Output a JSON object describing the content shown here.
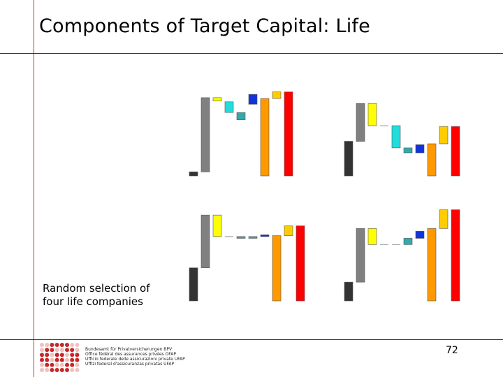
{
  "slide": {
    "title": "Components of Target Capital: Life",
    "caption_line1": "Random selection of",
    "caption_line2": "four life companies",
    "page_number": "72"
  },
  "logo": {
    "lines": [
      "Bundesamt für Privatversicherungen BPV",
      "Office fédéral des assurances privées OFAP",
      "Ufficio federale delle assicurazioni private UFAP",
      "Uffizi federal d'assicuranzas privatas UFAP"
    ],
    "color": "#c62828"
  },
  "colors": {
    "c1": "#333333",
    "c2": "#808080",
    "c3": "#ffff00",
    "c4": "#c0c0c0",
    "c5": "#22dddd",
    "c6": "#33aaaa",
    "c7": "#1133dd",
    "c8": "#ff9900",
    "c9": "#ffcc00",
    "c10": "#ff0000"
  },
  "chart_data": [
    {
      "type": "bar",
      "subtype": "waterfall",
      "title": "",
      "axes_visible": false,
      "grid": false,
      "ylim": [
        0,
        100
      ],
      "steps": [
        {
          "color": "c1",
          "start": 0,
          "end": 5
        },
        {
          "color": "c2",
          "start": 5,
          "end": 95
        },
        {
          "color": "c3",
          "start": 95,
          "end": 91
        },
        {
          "color": "c5",
          "start": 90,
          "end": 77
        },
        {
          "color": "c6",
          "start": 77,
          "end": 68
        },
        {
          "color": "c7",
          "start": 99,
          "end": 87
        },
        {
          "color": "c8",
          "start": 0,
          "end": 94
        },
        {
          "color": "c9",
          "start": 94,
          "end": 102
        },
        {
          "color": "c10",
          "start": 0,
          "end": 102
        }
      ]
    },
    {
      "type": "bar",
      "subtype": "waterfall",
      "title": "",
      "axes_visible": false,
      "grid": false,
      "ylim": [
        0,
        100
      ],
      "steps": [
        {
          "color": "c1",
          "start": 0,
          "end": 42
        },
        {
          "color": "c2",
          "start": 42,
          "end": 88
        },
        {
          "color": "c3",
          "start": 88,
          "end": 61
        },
        {
          "color": "c4",
          "start": 61,
          "end": 61
        },
        {
          "color": "c5",
          "start": 61,
          "end": 34
        },
        {
          "color": "c6",
          "start": 34,
          "end": 28
        },
        {
          "color": "c7",
          "start": 38,
          "end": 28
        },
        {
          "color": "c8",
          "start": 0,
          "end": 39
        },
        {
          "color": "c9",
          "start": 60,
          "end": 39
        },
        {
          "color": "c10",
          "start": 0,
          "end": 60
        }
      ]
    },
    {
      "type": "bar",
      "subtype": "waterfall",
      "title": "",
      "axes_visible": false,
      "grid": false,
      "ylim": [
        0,
        100
      ],
      "steps": [
        {
          "color": "c1",
          "start": 0,
          "end": 37
        },
        {
          "color": "c2",
          "start": 37,
          "end": 96
        },
        {
          "color": "c3",
          "start": 96,
          "end": 72
        },
        {
          "color": "c4",
          "start": 72,
          "end": 72
        },
        {
          "color": "c6",
          "start": 72,
          "end": 70
        },
        {
          "color": "c6",
          "start": 72,
          "end": 70
        },
        {
          "color": "c7",
          "start": 74,
          "end": 72
        },
        {
          "color": "c8",
          "start": 0,
          "end": 73
        },
        {
          "color": "c9",
          "start": 73,
          "end": 84
        },
        {
          "color": "c10",
          "start": 0,
          "end": 84
        }
      ]
    },
    {
      "type": "bar",
      "subtype": "waterfall",
      "title": "",
      "axes_visible": false,
      "grid": false,
      "ylim": [
        0,
        100
      ],
      "steps": [
        {
          "color": "c1",
          "start": 0,
          "end": 21
        },
        {
          "color": "c2",
          "start": 21,
          "end": 81
        },
        {
          "color": "c3",
          "start": 81,
          "end": 63
        },
        {
          "color": "c4",
          "start": 63,
          "end": 63
        },
        {
          "color": "c4",
          "start": 63,
          "end": 63
        },
        {
          "color": "c6",
          "start": 63,
          "end": 70
        },
        {
          "color": "c7",
          "start": 70,
          "end": 78
        },
        {
          "color": "c8",
          "start": 0,
          "end": 81
        },
        {
          "color": "c9",
          "start": 81,
          "end": 102
        },
        {
          "color": "c10",
          "start": 0,
          "end": 102
        }
      ]
    }
  ]
}
